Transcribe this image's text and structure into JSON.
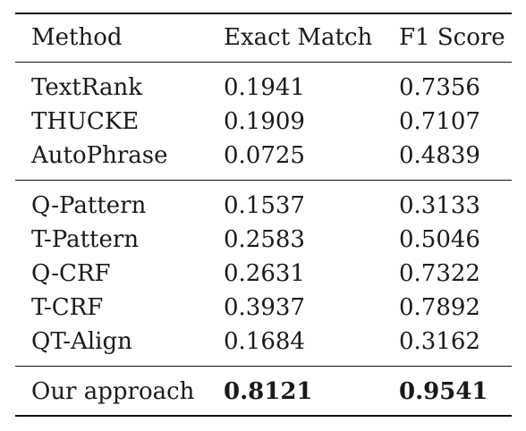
{
  "table": {
    "headers": [
      "Method",
      "Exact Match",
      "F1 Score"
    ],
    "groups": [
      [
        {
          "method": "TextRank",
          "em": "0.1941",
          "f1": "0.7356"
        },
        {
          "method": "THUCKE",
          "em": "0.1909",
          "f1": "0.7107"
        },
        {
          "method": "AutoPhrase",
          "em": "0.0725",
          "f1": "0.4839"
        }
      ],
      [
        {
          "method": "Q-Pattern",
          "em": "0.1537",
          "f1": "0.3133"
        },
        {
          "method": "T-Pattern",
          "em": "0.2583",
          "f1": "0.5046"
        },
        {
          "method": "Q-CRF",
          "em": "0.2631",
          "f1": "0.7322"
        },
        {
          "method": "T-CRF",
          "em": "0.3937",
          "f1": "0.7892"
        },
        {
          "method": "QT-Align",
          "em": "0.1684",
          "f1": "0.3162"
        }
      ],
      [
        {
          "method": "Our approach",
          "em": "0.8121",
          "f1": "0.9541",
          "bold_values": true
        }
      ]
    ]
  }
}
